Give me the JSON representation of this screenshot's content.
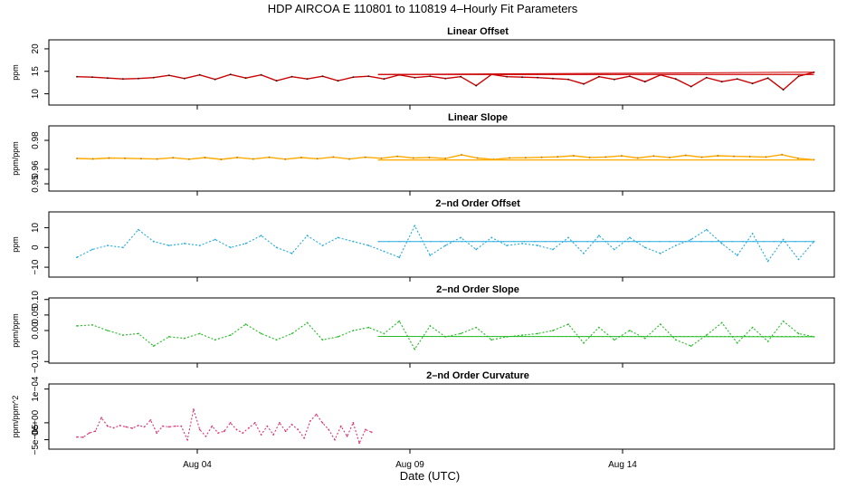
{
  "figure": {
    "title": "HDP   AIRCOA E   110801 to 110819   4–Hourly Fit Parameters",
    "xlabel": "Date (UTC)",
    "x_ticks": [
      {
        "day": 4,
        "label": "Aug 04"
      },
      {
        "day": 9,
        "label": "Aug 09"
      },
      {
        "day": 14,
        "label": "Aug 14"
      }
    ]
  },
  "chart_data": [
    {
      "type": "line",
      "title": "Linear Offset",
      "ylabel": "ppm",
      "ylim": [
        7.5,
        22
      ],
      "yticks": [
        {
          "v": 10,
          "label": "10"
        },
        {
          "v": 15,
          "label": "15"
        },
        {
          "v": 20,
          "label": "20"
        }
      ],
      "color": "#cc0000",
      "marker_color": "#111111",
      "style": "solid",
      "x_start_day": 1.17,
      "x_end_day": 18.5,
      "tail_start_day": 8.25,
      "tail_value": 14.3,
      "values": [
        13.8,
        13.7,
        13.5,
        13.3,
        13.4,
        13.6,
        14.1,
        13.4,
        14.2,
        13.2,
        14.3,
        13.5,
        14.2,
        12.9,
        13.8,
        13.3,
        13.9,
        12.9,
        13.7,
        13.9,
        13.3,
        14.2,
        13.6,
        13.9,
        13.4,
        13.8,
        11.8,
        14.3,
        13.8,
        13.7,
        13.6,
        13.4,
        13.2,
        12.2,
        13.8,
        13.2,
        13.9,
        12.7,
        14.2,
        13.3,
        11.6,
        13.6,
        12.7,
        13.3,
        12.3,
        13.5,
        10.9,
        13.9,
        14.8
      ]
    },
    {
      "type": "line",
      "title": "Linear Slope",
      "ylabel": "ppm/ppm",
      "ylim": [
        0.945,
        0.99
      ],
      "yticks": [
        {
          "v": 0.95,
          "label": "0.95"
        },
        {
          "v": 0.96,
          "label": "0.96"
        },
        {
          "v": 0.98,
          "label": "0.98"
        }
      ],
      "color": "#ffaa00",
      "marker_color": "#aa7700",
      "style": "solid",
      "x_start_day": 1.17,
      "x_end_day": 18.5,
      "tail_start_day": 8.25,
      "tail_value": 0.9665,
      "values": [
        0.9675,
        0.9672,
        0.9678,
        0.9676,
        0.9674,
        0.9671,
        0.968,
        0.967,
        0.9681,
        0.9669,
        0.9682,
        0.9671,
        0.9683,
        0.967,
        0.9681,
        0.9673,
        0.9685,
        0.9671,
        0.9684,
        0.9676,
        0.969,
        0.9678,
        0.9682,
        0.9675,
        0.97,
        0.9678,
        0.9668,
        0.9679,
        0.968,
        0.9683,
        0.9686,
        0.9694,
        0.9682,
        0.9685,
        0.9693,
        0.9678,
        0.9692,
        0.9682,
        0.9697,
        0.9684,
        0.9694,
        0.969,
        0.9688,
        0.9685,
        0.9701,
        0.9676,
        0.9666
      ]
    },
    {
      "type": "line",
      "title": "2–nd Order Offset",
      "ylabel": "ppm",
      "ylim": [
        -15,
        18
      ],
      "yticks": [
        {
          "v": -10,
          "label": "−10"
        },
        {
          "v": 0,
          "label": "0"
        },
        {
          "v": 10,
          "label": "10"
        }
      ],
      "color": "#22aadd",
      "marker_color": "#22aadd",
      "style": "dashed",
      "x_start_day": 1.17,
      "x_end_day": 18.5,
      "tail_start_day": 8.25,
      "tail_value": 3,
      "values": [
        -5,
        -1,
        1,
        0,
        9,
        3,
        1,
        2,
        1,
        4,
        0,
        2,
        6,
        0,
        -3,
        6,
        1,
        5,
        3,
        1,
        -2,
        -5,
        11,
        -4,
        1,
        5,
        -1,
        5,
        1,
        2,
        1,
        -1,
        5,
        -3,
        6,
        -1,
        5,
        0,
        -3,
        1,
        4,
        9,
        2,
        -4,
        7,
        -7,
        4,
        -6,
        3
      ]
    },
    {
      "type": "line",
      "title": "2–nd Order Slope",
      "ylabel": "ppm/ppm",
      "ylim": [
        -0.105,
        0.105
      ],
      "yticks": [
        {
          "v": -0.1,
          "label": "−0.10"
        },
        {
          "v": 0.0,
          "label": "0.00"
        },
        {
          "v": 0.05,
          "label": "0.05"
        },
        {
          "v": 0.1,
          "label": "0.10"
        }
      ],
      "color": "#22bb22",
      "marker_color": "#22bb22",
      "style": "dashed",
      "x_start_day": 1.17,
      "x_end_day": 18.5,
      "tail_start_day": 8.25,
      "tail_value": -0.019,
      "values": [
        0.015,
        0.018,
        0.0,
        -0.015,
        -0.01,
        -0.05,
        -0.02,
        -0.025,
        -0.01,
        -0.03,
        -0.015,
        0.02,
        -0.01,
        -0.03,
        -0.01,
        0.025,
        -0.03,
        -0.02,
        0.0,
        0.01,
        -0.01,
        0.03,
        -0.06,
        0.015,
        -0.02,
        -0.01,
        0.01,
        -0.03,
        -0.02,
        -0.015,
        -0.01,
        0.0,
        0.02,
        -0.04,
        0.01,
        -0.03,
        0.0,
        -0.025,
        0.02,
        -0.03,
        -0.05,
        -0.015,
        0.025,
        -0.04,
        0.01,
        -0.035,
        0.03,
        -0.01,
        -0.02
      ]
    },
    {
      "type": "line",
      "title": "2–nd Order Curvature",
      "ylabel": "ppm/ppm^2",
      "ylim": [
        -7.8e-05,
        0.000115
      ],
      "yticks": [
        {
          "v": -5e-05,
          "label": "−5e−05"
        },
        {
          "v": 0,
          "label": "0e+00"
        },
        {
          "v": 0.0001,
          "label": "1e−04"
        }
      ],
      "color": "#dd3377",
      "marker_color": "#dd3377",
      "style": "dashed",
      "x_start_day": 1.17,
      "x_end_day": 8.1,
      "tail_start_day": null,
      "tail_value": null,
      "values": [
        -4.2e-05,
        -4.3e-05,
        -3e-05,
        -2.5e-05,
        1.5e-05,
        -1e-05,
        -1.5e-05,
        -8e-06,
        -1.2e-05,
        -1.6e-05,
        -8e-06,
        -1.2e-05,
        8e-06,
        -3e-05,
        -1e-05,
        -1.2e-05,
        -1e-05,
        -1e-05,
        -5e-05,
        4e-05,
        -2e-05,
        -4e-05,
        -1e-05,
        -3e-05,
        -2.5e-05,
        0.0,
        -2e-05,
        -3e-05,
        -1.5e-05,
        0.0,
        -3.5e-05,
        -1e-05,
        -3.5e-05,
        0.0,
        -2.5e-05,
        -5e-06,
        -2e-05,
        -4.5e-05,
        5e-06,
        2.5e-05,
        0.0,
        -2e-05,
        -5e-05,
        -1e-05,
        -4e-05,
        0.0,
        -6e-05,
        -2e-05,
        -2.8e-05
      ]
    }
  ]
}
